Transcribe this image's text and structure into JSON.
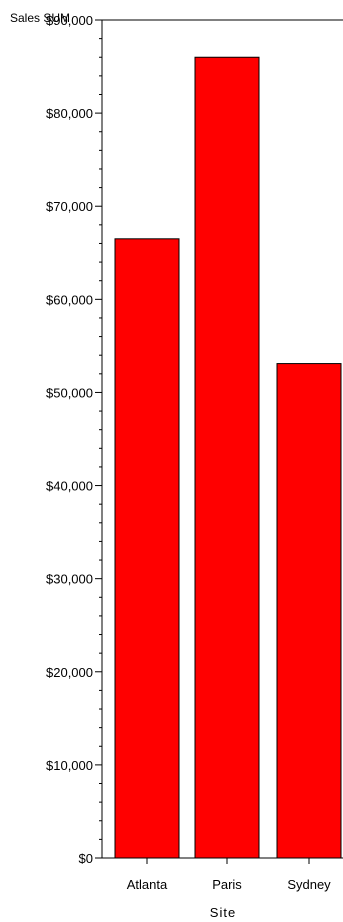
{
  "chart_data": {
    "type": "bar",
    "title": "",
    "ylabel": "Sales SUM",
    "xlabel": "Site",
    "categories": [
      "Atlanta",
      "Paris",
      "Sydney"
    ],
    "values": [
      66500,
      86000,
      53100
    ],
    "ylim": [
      0,
      90000
    ],
    "yticks": [
      0,
      10000,
      20000,
      30000,
      40000,
      50000,
      60000,
      70000,
      80000,
      90000
    ],
    "ytick_labels": [
      "$0",
      "$10,000",
      "$20,000",
      "$30,000",
      "$40,000",
      "$50,000",
      "$60,000",
      "$70,000",
      "$80,000",
      "$90,000"
    ],
    "minor_ticks_per_major": 5,
    "grid": false,
    "bar_color": "#ff0000",
    "bar_edge_color": "#000000"
  }
}
